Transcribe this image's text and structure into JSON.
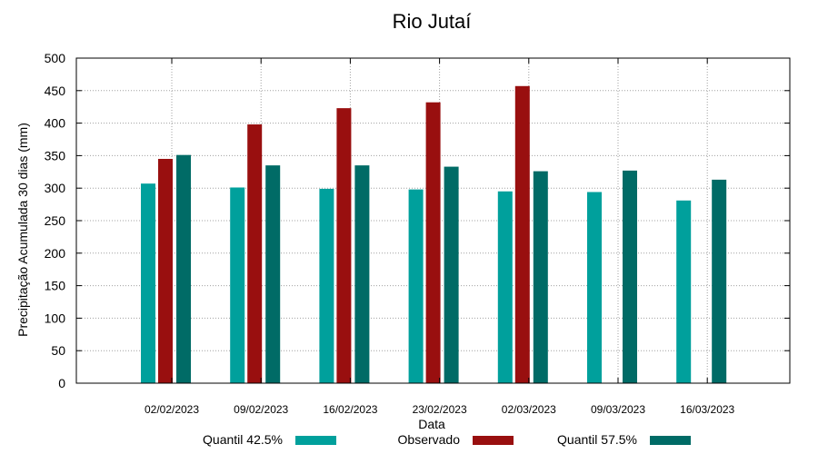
{
  "chart_data": {
    "type": "bar",
    "title": "Rio Jutaí",
    "xlabel": "Data",
    "ylabel": "Precipitação Acumulada 30 dias (mm)",
    "ylim": [
      0,
      500
    ],
    "yticks": [
      "0",
      "50",
      "100",
      "150",
      "200",
      "250",
      "300",
      "350",
      "400",
      "450",
      "500"
    ],
    "categories": [
      "02/02/2023",
      "09/02/2023",
      "16/02/2023",
      "23/02/2023",
      "02/03/2023",
      "09/03/2023",
      "16/03/2023"
    ],
    "grid": true,
    "legend_position": "bottom",
    "series": [
      {
        "name": "Quantil 42.5%",
        "color": "#00a09c",
        "values": [
          307,
          301,
          299,
          298,
          295,
          294,
          281
        ]
      },
      {
        "name": "Observado",
        "color": "#990f0f",
        "values": [
          345,
          398,
          423,
          432,
          457,
          null,
          null
        ]
      },
      {
        "name": "Quantil 57.5%",
        "color": "#006b66",
        "values": [
          351,
          335,
          335,
          333,
          326,
          327,
          313
        ]
      }
    ]
  }
}
